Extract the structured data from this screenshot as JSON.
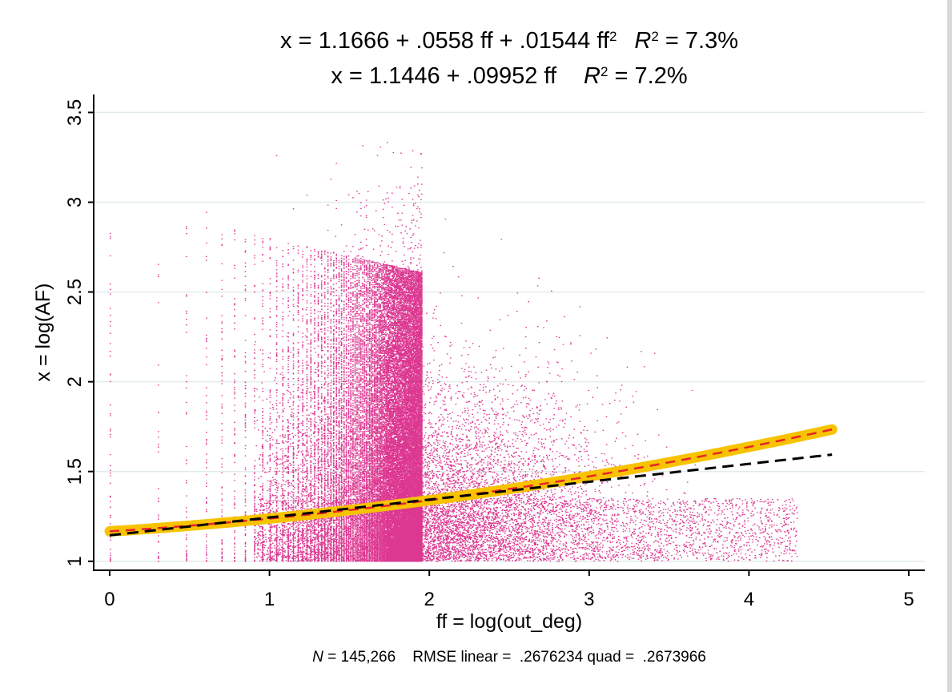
{
  "chart_data": {
    "type": "scatter",
    "title_line1": {
      "eq": "x = 1.1666 + .0558 ff + .01544 ff",
      "exp": "2",
      "r": "R",
      "rexp": "2",
      "val": " = 7.3%"
    },
    "title_line2": {
      "eq": "x = 1.1446 + .09952 ff",
      "r": "R",
      "rexp": "2",
      "val": " = 7.2%"
    },
    "xlabel": "ff = log(out_deg)",
    "ylabel": "x = log(AF)",
    "note": {
      "n": "N",
      "text": " = 145,266    RMSE linear =  .2676234 quad =  .2673966"
    },
    "xlim": [
      -0.1,
      5.1
    ],
    "ylim": [
      0.95,
      3.6
    ],
    "x_ticks": [
      "0",
      "1",
      "2",
      "3",
      "4",
      "5"
    ],
    "y_ticks": [
      "1",
      "1.5",
      "2",
      "2.5",
      "3",
      "3.5"
    ],
    "grid": true,
    "series": [
      {
        "kind": "scatter",
        "color": "#d6157e",
        "n": 145266
      },
      {
        "kind": "quadratic fit",
        "color": "#f7c300",
        "style": "thick solid",
        "coef": [
          1.1666,
          0.0558,
          0.01544
        ],
        "x_range": [
          0,
          4.52
        ]
      },
      {
        "kind": "quadratic fit",
        "color": "#e8242a",
        "style": "dashed",
        "coef": [
          1.1666,
          0.0558,
          0.01544
        ],
        "x_range": [
          0,
          4.52
        ]
      },
      {
        "kind": "linear fit",
        "color": "#000000",
        "style": "dashed",
        "coef": [
          1.1446,
          0.09952
        ],
        "x_range": [
          0,
          4.52
        ]
      }
    ]
  }
}
